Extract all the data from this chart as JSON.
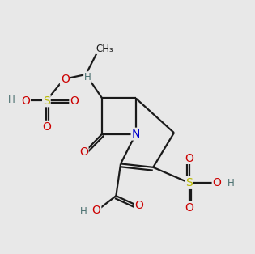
{
  "bg_color": "#e8e8e8",
  "bond_color": "#1a1a1a",
  "colors": {
    "O": "#cc0000",
    "S": "#b8b800",
    "N": "#0000cc",
    "H": "#4a7070",
    "C": "#1a1a1a"
  },
  "lw": 1.6,
  "fs": 10.0,
  "fs_small": 8.5
}
